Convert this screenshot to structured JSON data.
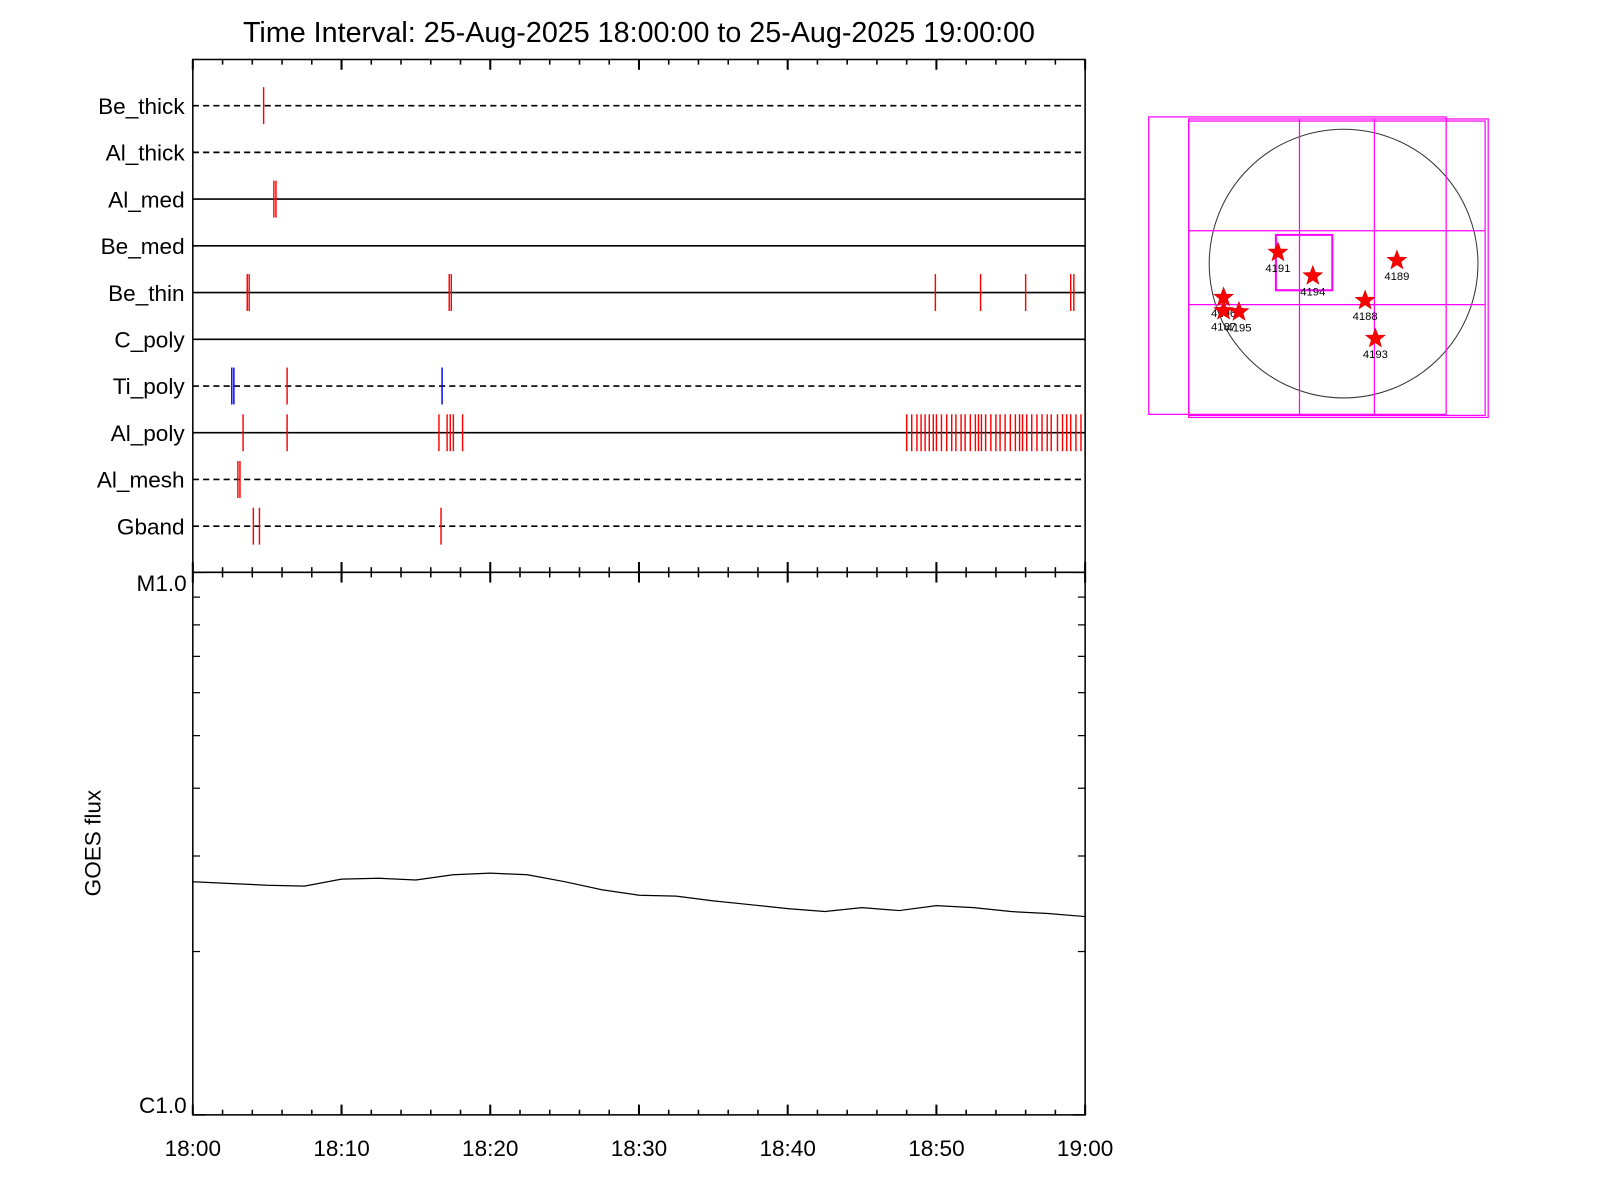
{
  "chart_data": [
    {
      "type": "timeline",
      "title": "Time Interval: 25-Aug-2025 18:00:00 to 25-Aug-2025 19:00:00",
      "xlim": [
        0,
        60
      ],
      "xticks": [
        0,
        10,
        20,
        30,
        40,
        50,
        60
      ],
      "xminor": [
        2,
        4,
        6,
        8,
        12,
        14,
        16,
        18,
        22,
        24,
        26,
        28,
        32,
        34,
        36,
        38,
        42,
        44,
        46,
        48,
        52,
        54,
        56,
        58
      ],
      "rows": [
        {
          "name": "Be_thick",
          "line": "dashed",
          "events": [
            {
              "color": "#ff0000",
              "t": [
                4.76
              ]
            }
          ]
        },
        {
          "name": "Al_thick",
          "line": "dashed",
          "events": []
        },
        {
          "name": "Al_med",
          "line": "solid",
          "events": [
            {
              "color": "#ff0000",
              "t": [
                5.45,
                5.59
              ]
            }
          ]
        },
        {
          "name": "Be_med",
          "line": "solid",
          "events": []
        },
        {
          "name": "Be_thin",
          "line": "solid",
          "events": [
            {
              "color": "#ff0000",
              "t": [
                3.66,
                3.79,
                17.24,
                17.38,
                49.93,
                52.97,
                56.0,
                59.03,
                59.24
              ]
            }
          ]
        },
        {
          "name": "C_poly",
          "line": "solid",
          "events": []
        },
        {
          "name": "Ti_poly",
          "line": "dashed",
          "events": [
            {
              "color": "#0000ff",
              "t": [
                2.62,
                2.76,
                16.76
              ]
            },
            {
              "color": "#ff0000",
              "t": [
                6.34
              ]
            }
          ]
        },
        {
          "name": "Al_poly",
          "line": "solid",
          "events": [
            {
              "color": "#ff0000",
              "t": [
                3.38,
                6.34,
                16.55,
                17.1,
                17.31,
                17.52,
                18.14,
                48.0,
                48.34,
                48.69,
                48.97,
                49.24,
                49.52,
                49.79,
                50.0,
                50.34,
                50.69,
                51.03,
                51.31,
                51.66,
                51.93,
                52.28,
                52.62,
                52.83,
                53.03,
                53.31,
                53.66,
                54.0,
                54.28,
                54.62,
                54.97,
                55.31,
                55.59,
                55.79,
                56.07,
                56.41,
                56.76,
                57.1,
                57.45,
                57.72,
                58.14,
                58.48,
                58.76,
                59.03,
                59.38,
                59.72
              ]
            }
          ]
        },
        {
          "name": "Al_mesh",
          "line": "dashed",
          "events": [
            {
              "color": "#ff0000",
              "t": [
                3.03,
                3.17
              ]
            }
          ]
        },
        {
          "name": "Gband",
          "line": "dashed",
          "events": [
            {
              "color": "#ff0000",
              "t": [
                4.07,
                4.48,
                16.69
              ]
            }
          ]
        }
      ]
    },
    {
      "type": "line",
      "ylabel": "GOES flux",
      "color": "#000000",
      "log": true,
      "xlim": [
        0,
        60
      ],
      "xticks": [
        {
          "value": 0,
          "label": "18:00"
        },
        {
          "value": 10,
          "label": "18:10"
        },
        {
          "value": 20,
          "label": "18:20"
        },
        {
          "value": 30,
          "label": "18:30"
        },
        {
          "value": 40,
          "label": "18:40"
        },
        {
          "value": 50,
          "label": "18:50"
        },
        {
          "value": 60,
          "label": "19:00"
        }
      ],
      "xminor": [
        2,
        4,
        6,
        8,
        12,
        14,
        16,
        18,
        22,
        24,
        26,
        28,
        32,
        34,
        36,
        38,
        42,
        44,
        46,
        48,
        52,
        54,
        56,
        58
      ],
      "ylim": [
        1,
        10
      ],
      "yticks": [
        {
          "value": 1,
          "label": "C1.0"
        },
        {
          "value": 10,
          "label": "M1.0"
        }
      ],
      "yminor": [
        2,
        3,
        4,
        5,
        6,
        7,
        8,
        9
      ],
      "x": [
        0,
        2.5,
        5,
        7.5,
        10,
        12.5,
        15,
        17.5,
        20,
        22.5,
        25,
        27.5,
        30,
        32.5,
        35,
        37.5,
        40,
        42.5,
        45,
        47.5,
        50,
        52.5,
        55,
        57.5,
        60
      ],
      "values": [
        2.69,
        2.67,
        2.65,
        2.64,
        2.72,
        2.73,
        2.71,
        2.77,
        2.79,
        2.77,
        2.69,
        2.6,
        2.54,
        2.53,
        2.48,
        2.44,
        2.4,
        2.37,
        2.41,
        2.38,
        2.43,
        2.41,
        2.37,
        2.35,
        2.32
      ]
    },
    {
      "type": "map",
      "regions": [
        "4191",
        "4194",
        "4189",
        "4188",
        "4193",
        "4196",
        "4187",
        "4195"
      ]
    }
  ]
}
